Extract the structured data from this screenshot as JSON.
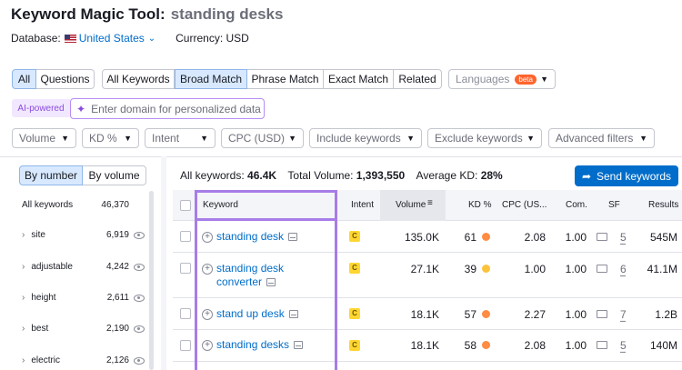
{
  "header": {
    "title": "Keyword Magic Tool:",
    "query": "standing desks",
    "database_label": "Database:",
    "database_value": "United States",
    "currency_label": "Currency:",
    "currency_value": "USD"
  },
  "tabs_group1": [
    "All",
    "Questions"
  ],
  "tabs_group2": [
    "All Keywords",
    "Broad Match",
    "Phrase Match",
    "Exact Match",
    "Related"
  ],
  "languages": {
    "label": "Languages",
    "badge": "beta"
  },
  "ai": {
    "label": "AI-powered",
    "placeholder": "Enter domain for personalized data"
  },
  "filters": [
    "Volume",
    "KD %",
    "Intent",
    "CPC (USD)",
    "Include keywords",
    "Exclude keywords",
    "Advanced filters"
  ],
  "sidebar": {
    "toggle": [
      "By number",
      "By volume"
    ],
    "all_label": "All keywords",
    "all_count": "46,370",
    "items": [
      {
        "label": "site",
        "count": "6,919"
      },
      {
        "label": "adjustable",
        "count": "4,242"
      },
      {
        "label": "height",
        "count": "2,611"
      },
      {
        "label": "best",
        "count": "2,190"
      },
      {
        "label": "electric",
        "count": "2,126"
      }
    ]
  },
  "summary": {
    "all_keywords_label": "All keywords:",
    "all_keywords_value": "46.4K",
    "total_volume_label": "Total Volume:",
    "total_volume_value": "1,393,550",
    "avg_kd_label": "Average KD:",
    "avg_kd_value": "28%"
  },
  "send_button": "Send keywords",
  "columns": [
    "Keyword",
    "Intent",
    "Volume",
    "KD %",
    "CPC (US...",
    "Com.",
    "SF",
    "Results"
  ],
  "rows": [
    {
      "keyword": "standing desk",
      "keyword2": "",
      "intent": "C",
      "volume": "135.0K",
      "kd": "61",
      "kd_color": "#ff8c43",
      "cpc": "2.08",
      "com": "1.00",
      "sf": "5",
      "results": "545M"
    },
    {
      "keyword": "standing desk",
      "keyword2": "converter",
      "intent": "C",
      "volume": "27.1K",
      "kd": "39",
      "kd_color": "#fdc23c",
      "cpc": "1.00",
      "com": "1.00",
      "sf": "6",
      "results": "41.1M"
    },
    {
      "keyword": "stand up desk",
      "keyword2": "",
      "intent": "C",
      "volume": "18.1K",
      "kd": "57",
      "kd_color": "#ff8c43",
      "cpc": "2.27",
      "com": "1.00",
      "sf": "7",
      "results": "1.2B"
    },
    {
      "keyword": "standing desks",
      "keyword2": "",
      "intent": "C",
      "volume": "18.1K",
      "kd": "58",
      "kd_color": "#ff8c43",
      "cpc": "2.08",
      "com": "1.00",
      "sf": "5",
      "results": "140M"
    }
  ]
}
